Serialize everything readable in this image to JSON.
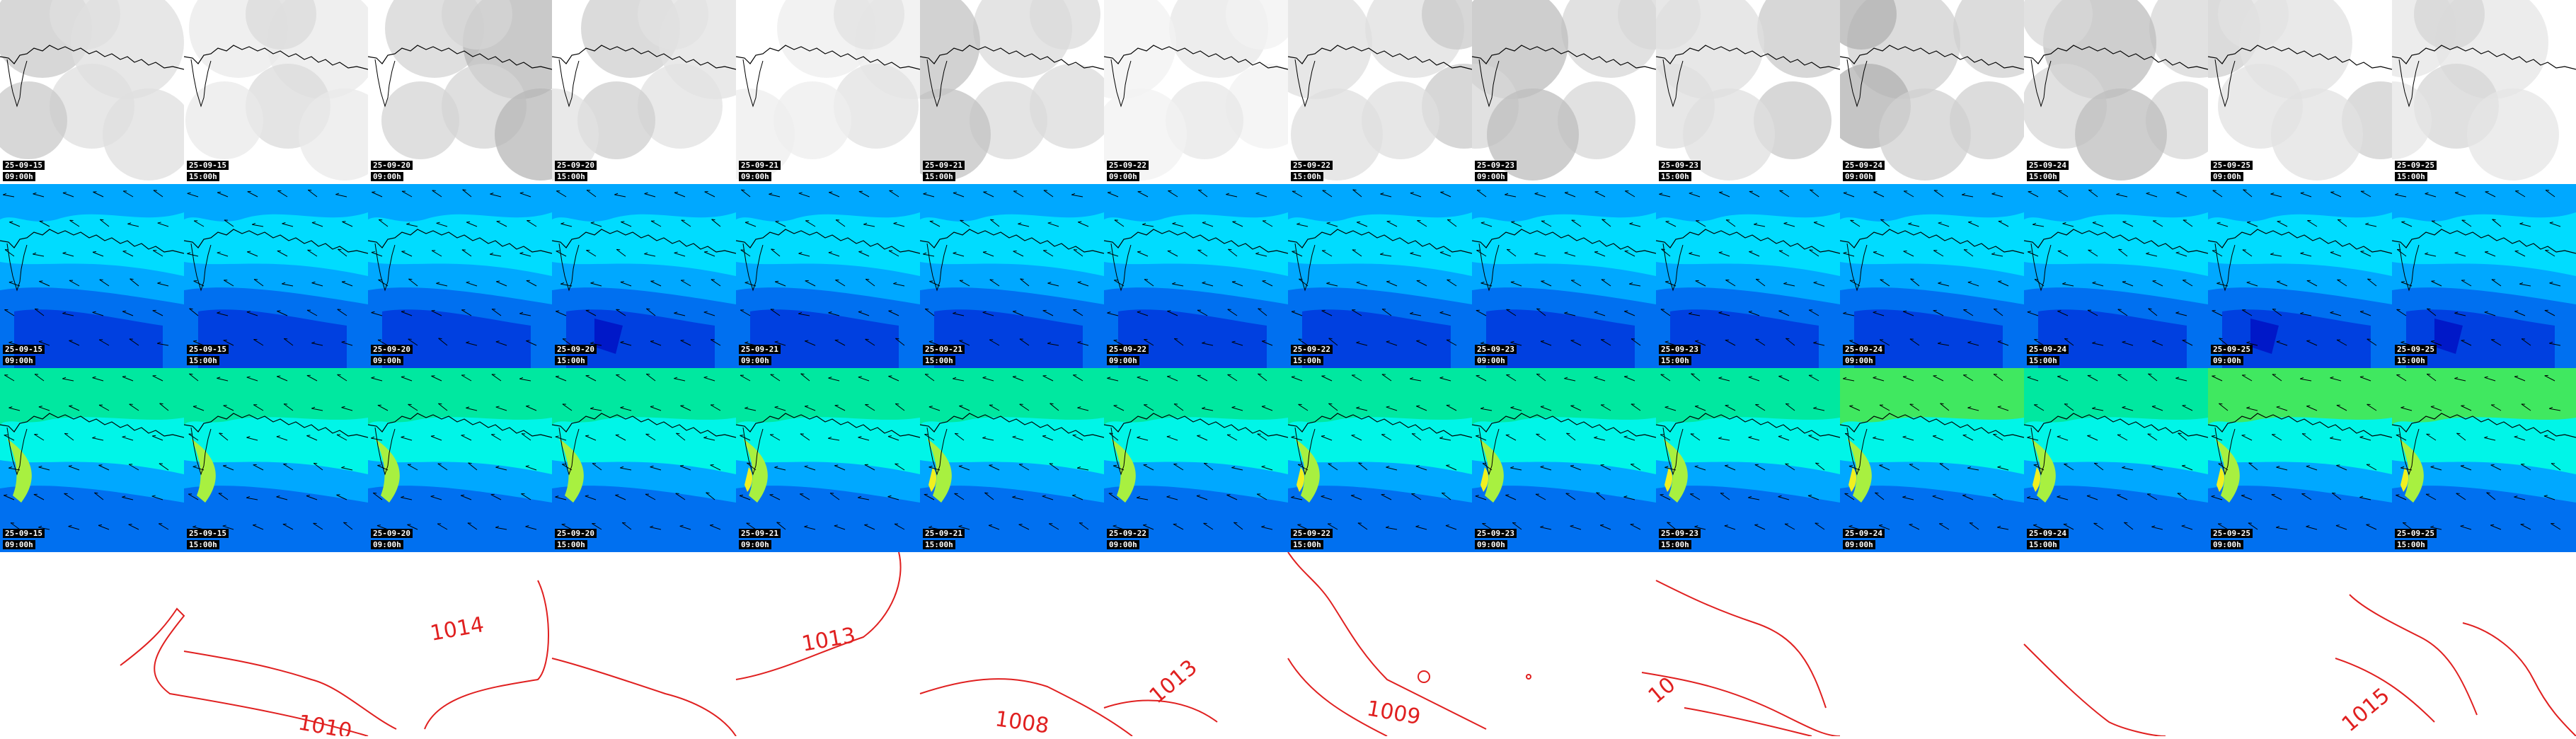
{
  "columns": [
    {
      "date": "25-09-15",
      "time": "09:00h",
      "cloud": 0.45,
      "mslp": 0.45,
      "wind": 0.45
    },
    {
      "date": "25-09-15",
      "time": "15:00h",
      "cloud": 0.3,
      "mslp": 0.55,
      "wind": 0.55
    },
    {
      "date": "25-09-20",
      "time": "09:00h",
      "cloud": 0.6,
      "mslp": 0.45,
      "wind": 0.55
    },
    {
      "date": "25-09-20",
      "time": "15:00h",
      "cloud": 0.4,
      "mslp": 0.6,
      "wind": 0.6
    },
    {
      "date": "25-09-21",
      "time": "09:00h",
      "cloud": 0.25,
      "mslp": 0.45,
      "wind": 0.7
    },
    {
      "date": "25-09-21",
      "time": "15:00h",
      "cloud": 0.5,
      "mslp": 0.55,
      "wind": 0.65
    },
    {
      "date": "25-09-22",
      "time": "09:00h",
      "cloud": 0.2,
      "mslp": 0.4,
      "wind": 0.6
    },
    {
      "date": "25-09-22",
      "time": "15:00h",
      "cloud": 0.45,
      "mslp": 0.5,
      "wind": 0.65
    },
    {
      "date": "25-09-23",
      "time": "09:00h",
      "cloud": 0.55,
      "mslp": 0.55,
      "wind": 0.7
    },
    {
      "date": "25-09-23",
      "time": "15:00h",
      "cloud": 0.45,
      "mslp": 0.5,
      "wind": 0.75
    },
    {
      "date": "25-09-24",
      "time": "09:00h",
      "cloud": 0.65,
      "mslp": 0.55,
      "wind": 0.8
    },
    {
      "date": "25-09-24",
      "time": "15:00h",
      "cloud": 0.55,
      "mslp": 0.5,
      "wind": 0.7
    },
    {
      "date": "25-09-25",
      "time": "09:00h",
      "cloud": 0.4,
      "mslp": 0.65,
      "wind": 0.9
    },
    {
      "date": "25-09-25",
      "time": "15:00h",
      "cloud": 0.35,
      "mslp": 0.6,
      "wind": 0.8
    }
  ],
  "isobar_labels": [
    "1010",
    "1014",
    "1013",
    "1008",
    "1013",
    "1009",
    "10",
    "1015"
  ],
  "colors": {
    "coast": "#000000",
    "isobar": "#e02020",
    "wind_scale": [
      "#0018c8",
      "#0040e0",
      "#0070f0",
      "#00a8ff",
      "#00dcff",
      "#00f5e8",
      "#00e8a0",
      "#40e860",
      "#a8f040",
      "#f0f020"
    ]
  }
}
